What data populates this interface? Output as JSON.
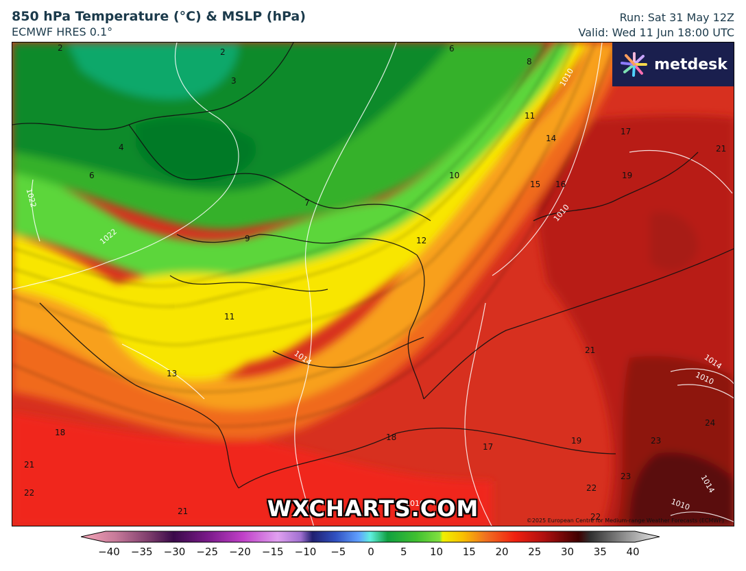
{
  "header": {
    "title": "850 hPa Temperature (°C) & MSLP (hPa)",
    "model": "ECMWF HRES 0.1°",
    "run": "Run: Sat 31 May 12Z",
    "valid": "Valid: Wed 11 Jun 18:00 UTC"
  },
  "logo": {
    "text": "metdesk"
  },
  "watermark": "WXCHARTS.COM",
  "copyright": "©2025 European Centre for Medium-range Weather Forecasts (ECMWF)",
  "temperature_labels": [
    {
      "text": "2"
    },
    {
      "text": "2"
    },
    {
      "text": "3"
    },
    {
      "text": "4"
    },
    {
      "text": "6"
    },
    {
      "text": "6"
    },
    {
      "text": "8"
    },
    {
      "text": "7"
    },
    {
      "text": "9"
    },
    {
      "text": "10"
    },
    {
      "text": "11"
    },
    {
      "text": "14"
    },
    {
      "text": "15"
    },
    {
      "text": "16"
    },
    {
      "text": "17"
    },
    {
      "text": "19"
    },
    {
      "text": "21"
    },
    {
      "text": "12"
    },
    {
      "text": "11"
    },
    {
      "text": "13"
    },
    {
      "text": "21"
    },
    {
      "text": "18"
    },
    {
      "text": "18"
    },
    {
      "text": "17"
    },
    {
      "text": "19"
    },
    {
      "text": "23"
    },
    {
      "text": "24"
    },
    {
      "text": "21"
    },
    {
      "text": "22"
    },
    {
      "text": "21"
    },
    {
      "text": "22"
    },
    {
      "text": "23"
    },
    {
      "text": "22"
    }
  ],
  "pressure_labels": [
    {
      "text": "1022"
    },
    {
      "text": "1022"
    },
    {
      "text": "1010"
    },
    {
      "text": "1010"
    },
    {
      "text": "1014"
    },
    {
      "text": "1010"
    },
    {
      "text": "1014"
    },
    {
      "text": "1010"
    },
    {
      "text": "1010"
    },
    {
      "text": "1014"
    }
  ],
  "colorbar": {
    "min": -40,
    "max": 40,
    "tick_labels": [
      "−40",
      "−35",
      "−30",
      "−25",
      "−20",
      "−15",
      "−10",
      "−5",
      "0",
      "5",
      "10",
      "15",
      "20",
      "25",
      "30",
      "35",
      "40"
    ]
  },
  "colors": {
    "header_text": "#1b3a4b",
    "logo_bg": "#1a1f4e"
  }
}
